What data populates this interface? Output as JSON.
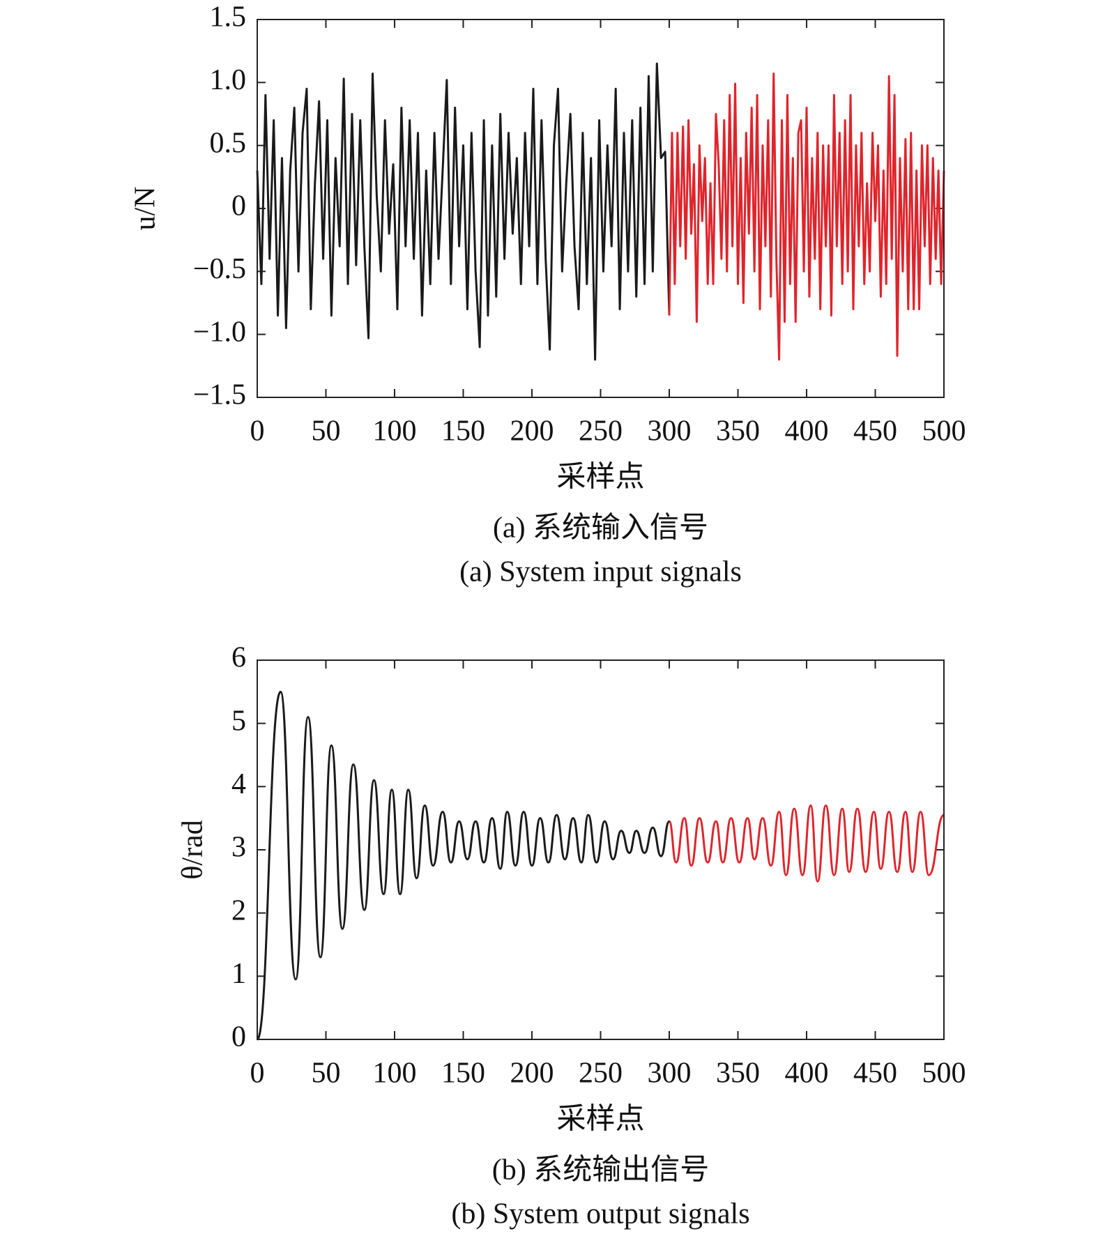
{
  "chart_data": [
    {
      "type": "line",
      "interpolation": "linear",
      "title": "(a) 系统输入信号",
      "subtitle": "(a) System input signals",
      "xlabel": "采样点",
      "ylabel": "u/N",
      "xlim": [
        0,
        500
      ],
      "xticks": [
        0,
        50,
        100,
        150,
        200,
        250,
        300,
        350,
        400,
        450,
        500
      ],
      "ylim": [
        -1.5,
        1.5
      ],
      "yticks": [
        {
          "value": -1.5,
          "label": "−1.5"
        },
        {
          "value": -1.0,
          "label": "−1.0"
        },
        {
          "value": -0.5,
          "label": "−0.5"
        },
        0,
        0.5,
        {
          "value": 1.0,
          "label": "1.0"
        },
        1.5
      ],
      "series": [
        {
          "color": "#1a1a1a",
          "x": [
            0,
            3,
            6,
            9,
            12,
            15,
            18,
            21,
            24,
            27,
            30,
            33,
            36,
            39,
            42,
            45,
            48,
            51,
            54,
            57,
            60,
            63,
            66,
            69,
            72,
            75,
            78,
            81,
            84,
            87,
            90,
            93,
            96,
            99,
            102,
            105,
            108,
            111,
            114,
            117,
            120,
            123,
            126,
            129,
            132,
            135,
            138,
            141,
            144,
            147,
            150,
            153,
            156,
            159,
            162,
            165,
            168,
            171,
            174,
            177,
            180,
            183,
            186,
            189,
            192,
            195,
            198,
            201,
            204,
            207,
            210,
            213,
            216,
            219,
            222,
            225,
            228,
            231,
            234,
            237,
            240,
            243,
            246,
            249,
            252,
            255,
            258,
            261,
            264,
            267,
            270,
            273,
            276,
            279,
            282,
            285,
            288,
            291,
            294,
            297,
            300
          ],
          "values": [
            0.3,
            -0.6,
            0.9,
            -0.4,
            0.7,
            -0.85,
            0.4,
            -0.95,
            0.3,
            0.8,
            -0.5,
            0.6,
            0.95,
            -0.8,
            0.2,
            0.85,
            -0.4,
            0.7,
            -0.85,
            0.4,
            -0.3,
            1.03,
            -0.6,
            0.75,
            -0.45,
            0.7,
            -0.3,
            -1.03,
            1.07,
            0.1,
            -0.5,
            0.7,
            -0.2,
            0.35,
            -0.8,
            0.8,
            -0.3,
            0.7,
            -0.4,
            0.6,
            -0.85,
            0.3,
            -0.6,
            0.6,
            -0.4,
            0.3,
            1.02,
            -0.6,
            0.8,
            -0.3,
            0.5,
            -0.8,
            0.6,
            -0.5,
            -1.1,
            0.7,
            -0.85,
            0.5,
            -0.7,
            0.75,
            -0.4,
            0.6,
            -0.2,
            0.4,
            -0.6,
            0.6,
            -0.3,
            0.95,
            -0.6,
            0.7,
            -0.4,
            -1.12,
            0.5,
            0.95,
            -0.5,
            0.2,
            0.75,
            -0.3,
            -0.8,
            0.6,
            -0.6,
            0.4,
            -1.2,
            0.7,
            -0.5,
            0.5,
            -0.3,
            0.95,
            -0.8,
            0.6,
            -0.5,
            0.7,
            -0.7,
            0.8,
            -0.6,
            1.05,
            -0.5,
            1.15,
            0.4,
            0.45,
            -0.85
          ]
        },
        {
          "color": "#e0242b",
          "x": [
            300,
            302,
            304,
            306,
            308,
            310,
            312,
            314,
            316,
            318,
            320,
            322,
            324,
            326,
            328,
            330,
            332,
            334,
            336,
            338,
            340,
            342,
            344,
            346,
            348,
            350,
            352,
            354,
            356,
            358,
            360,
            362,
            364,
            366,
            368,
            370,
            372,
            374,
            376,
            378,
            380,
            382,
            384,
            386,
            388,
            390,
            392,
            394,
            396,
            398,
            400,
            402,
            404,
            406,
            408,
            410,
            412,
            414,
            416,
            418,
            420,
            422,
            424,
            426,
            428,
            430,
            432,
            434,
            436,
            438,
            440,
            442,
            444,
            446,
            448,
            450,
            452,
            454,
            456,
            458,
            460,
            462,
            464,
            466,
            468,
            470,
            472,
            474,
            476,
            478,
            480,
            482,
            484,
            486,
            488,
            490,
            492,
            494,
            496,
            498,
            500
          ],
          "values": [
            -0.85,
            0.6,
            -0.6,
            0.6,
            -0.3,
            0.65,
            -0.4,
            0.7,
            -0.2,
            0.35,
            -0.9,
            0.5,
            -0.1,
            0.4,
            -0.6,
            0.2,
            -0.6,
            0.75,
            0.35,
            -0.4,
            0.7,
            -0.5,
            0.9,
            -0.3,
            0.99,
            -0.6,
            0.4,
            -0.75,
            0.6,
            -0.2,
            0.8,
            -0.5,
            0.9,
            -0.8,
            0.5,
            -0.3,
            0.7,
            -0.7,
            1.07,
            -0.4,
            -1.2,
            0.7,
            -0.9,
            0.9,
            -0.6,
            0.4,
            -0.9,
            0.6,
            0.7,
            -0.5,
            0.8,
            -0.7,
            0.4,
            -0.4,
            0.6,
            -0.8,
            0.5,
            -0.3,
            0.5,
            -0.85,
            0.9,
            -0.3,
            0.6,
            -0.6,
            0.7,
            -0.5,
            0.9,
            -0.8,
            0.5,
            -0.3,
            0.6,
            -0.6,
            0.2,
            -0.5,
            0.6,
            -0.1,
            0.5,
            -0.7,
            0.3,
            -0.6,
            1.05,
            -0.4,
            0.9,
            -1.17,
            0.4,
            -0.5,
            0.55,
            -0.8,
            0.6,
            -0.8,
            0.3,
            -0.8,
            0.5,
            -0.3,
            0.5,
            -0.6,
            0.4,
            -0.4,
            0.3,
            -0.6,
            0.3
          ]
        }
      ]
    },
    {
      "type": "line",
      "interpolation": "smooth",
      "title": "(b) 系统输出信号",
      "subtitle": "(b) System output signals",
      "xlabel": "采样点",
      "ylabel": "θ/rad",
      "xlim": [
        0,
        500
      ],
      "xticks": [
        0,
        50,
        100,
        150,
        200,
        250,
        300,
        350,
        400,
        450,
        500
      ],
      "ylim": [
        0,
        6
      ],
      "yticks": [
        0,
        1,
        2,
        3,
        4,
        5,
        6
      ],
      "series": [
        {
          "color": "#1a1a1a",
          "x": [
            0,
            17,
            28,
            37,
            46,
            54,
            62,
            70,
            78,
            85,
            92,
            98,
            104,
            110,
            116,
            122,
            128,
            135,
            141,
            147,
            153,
            159,
            165,
            171,
            177,
            182,
            188,
            194,
            200,
            206,
            212,
            218,
            224,
            230,
            236,
            241,
            247,
            253,
            259,
            265,
            271,
            276,
            282,
            288,
            294,
            300
          ],
          "values": [
            0,
            5.5,
            0.95,
            5.1,
            1.3,
            4.65,
            1.75,
            4.35,
            2.05,
            4.1,
            2.3,
            3.95,
            2.3,
            3.95,
            2.55,
            3.7,
            2.75,
            3.6,
            2.8,
            3.45,
            2.85,
            3.45,
            2.8,
            3.5,
            2.7,
            3.6,
            2.75,
            3.6,
            2.75,
            3.5,
            2.8,
            3.55,
            2.85,
            3.5,
            2.8,
            3.55,
            2.8,
            3.45,
            2.85,
            3.3,
            2.95,
            3.3,
            2.95,
            3.35,
            2.9,
            3.45
          ]
        },
        {
          "color": "#e0242b",
          "x": [
            300,
            305,
            311,
            316,
            322,
            328,
            334,
            339,
            345,
            351,
            357,
            362,
            368,
            374,
            380,
            385,
            391,
            397,
            403,
            408,
            414,
            420,
            426,
            431,
            437,
            443,
            449,
            454,
            460,
            466,
            472,
            477,
            483,
            489,
            500
          ],
          "values": [
            3.45,
            2.8,
            3.5,
            2.75,
            3.5,
            2.8,
            3.45,
            2.8,
            3.5,
            2.8,
            3.5,
            2.85,
            3.5,
            2.75,
            3.6,
            2.6,
            3.65,
            2.6,
            3.7,
            2.5,
            3.7,
            2.6,
            3.65,
            2.65,
            3.65,
            2.65,
            3.6,
            2.7,
            3.6,
            2.65,
            3.6,
            2.65,
            3.6,
            2.6,
            3.55
          ]
        }
      ]
    }
  ]
}
